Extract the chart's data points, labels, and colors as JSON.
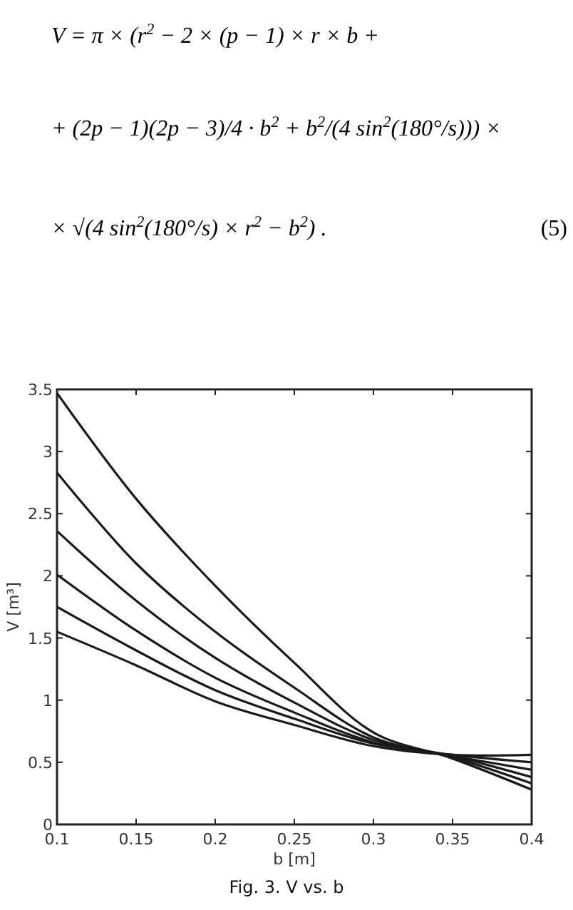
{
  "chart_data": {
    "type": "line",
    "xlabel": "b [m]",
    "ylabel": "V [m³]",
    "annotations": [
      "V = π × (r$^{2}$ − 2 × (p − 1) × r × b +",
      "+ (2p − 1)(2p − 3)/4 · b$^{2}$ + b$^{2}$/(4 sin$^{2}$(180°/s))) ×",
      "× √(4 sin$^{2}$(180°/s) × r$^{2}$ − b$^{2}$) .",
      "(5)",
      "Fig. 3.  V vs. b"
    ],
    "x": [
      0.1,
      0.15,
      0.2,
      0.25,
      0.3,
      0.35,
      0.4
    ],
    "series": [
      {
        "color": "#1a1a1a",
        "values": [
          3.47,
          2.62,
          1.92,
          1.3,
          0.74,
          0.53,
          0.28
        ]
      },
      {
        "color": "#1a1a1a",
        "values": [
          2.83,
          2.1,
          1.55,
          1.1,
          0.7,
          0.54,
          0.33
        ]
      },
      {
        "color": "#1a1a1a",
        "values": [
          2.36,
          1.8,
          1.34,
          0.98,
          0.68,
          0.55,
          0.38
        ]
      },
      {
        "color": "#1a1a1a",
        "values": [
          2.01,
          1.56,
          1.18,
          0.9,
          0.66,
          0.55,
          0.44
        ]
      },
      {
        "color": "#1a1a1a",
        "values": [
          1.75,
          1.4,
          1.08,
          0.85,
          0.65,
          0.56,
          0.5
        ]
      },
      {
        "color": "#1a1a1a",
        "values": [
          1.55,
          1.28,
          0.99,
          0.8,
          0.63,
          0.56,
          0.56
        ]
      }
    ],
    "xlim": [
      0.1,
      0.4
    ],
    "xticks": [
      0.1,
      0.15,
      0.2,
      0.25,
      0.3,
      0.35,
      0.4
    ],
    "ylim": [
      0,
      3.5
    ],
    "yticks": [
      0,
      0.5,
      1,
      1.5,
      2,
      2.5,
      3,
      3.5
    ],
    "marker": "none",
    "line_style": "solid"
  }
}
